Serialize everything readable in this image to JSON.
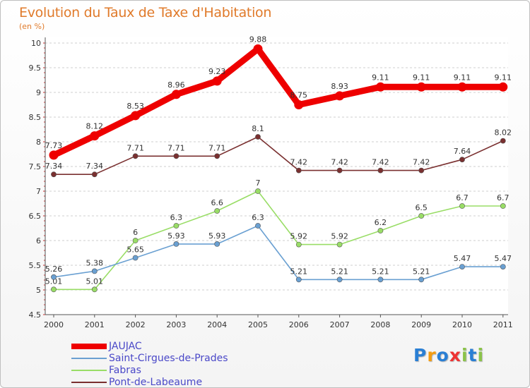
{
  "chart_data": {
    "type": "line",
    "title": "Evolution du Taux de Taxe d'Habitation",
    "subtitle": "(en %)",
    "xlabel": "",
    "ylabel": "",
    "categories": [
      "2000",
      "2001",
      "2002",
      "2003",
      "2004",
      "2005",
      "2006",
      "2007",
      "2008",
      "2009",
      "2010",
      "2011"
    ],
    "ylim": [
      4.5,
      10
    ],
    "yticks": [
      4.5,
      5,
      5.5,
      6,
      6.5,
      7,
      7.5,
      8,
      8.5,
      9,
      9.5,
      10
    ],
    "ytick_labels": [
      "4.5",
      "5",
      "5.5",
      "6",
      "6.5",
      "7",
      "7.5",
      "8",
      "8.5",
      "9",
      "9.5",
      "10"
    ],
    "grid": "horizontal dashed",
    "legend_position": "bottom-left",
    "series": [
      {
        "name": "JAUJAC",
        "color": "#ee0000",
        "values": [
          7.73,
          8.12,
          8.53,
          8.96,
          9.23,
          9.88,
          8.75,
          8.93,
          9.11,
          9.11,
          9.11,
          9.11
        ],
        "labels": [
          "7.73",
          "8.12",
          "8.53",
          "8.96",
          "9.23",
          "9.88",
          "8.75",
          "8.93",
          "9.11",
          "9.11",
          "9.11",
          "9.11"
        ]
      },
      {
        "name": "Saint-Cirgues-de-Prades",
        "color": "#6aa0d2",
        "values": [
          5.26,
          5.38,
          5.65,
          5.93,
          5.93,
          6.3,
          5.21,
          5.21,
          5.21,
          5.21,
          5.47,
          5.47
        ],
        "labels": [
          "5.26",
          "5.38",
          "5.65",
          "5.93",
          "5.93",
          "6.3",
          "5.21",
          "5.21",
          "5.21",
          "5.21",
          "5.47",
          "5.47"
        ]
      },
      {
        "name": "Fabras",
        "color": "#99dd66",
        "values": [
          5.01,
          5.01,
          6.0,
          6.3,
          6.6,
          7.0,
          5.92,
          5.92,
          6.2,
          6.5,
          6.7,
          6.7
        ],
        "labels": [
          "5.01",
          "5.01",
          "6",
          "6.3",
          "6.6",
          "7",
          "5.92",
          "5.92",
          "6.2",
          "6.5",
          "6.7",
          "6.7"
        ]
      },
      {
        "name": "Pont-de-Labeaume",
        "color": "#7a3030",
        "values": [
          7.34,
          7.34,
          7.71,
          7.71,
          7.71,
          8.1,
          7.42,
          7.42,
          7.42,
          7.42,
          7.64,
          8.02
        ],
        "labels": [
          "7.34",
          "7.34",
          "7.71",
          "7.71",
          "7.71",
          "8.1",
          "7.42",
          "7.42",
          "7.42",
          "7.42",
          "7.64",
          "8.02"
        ]
      }
    ]
  },
  "logo": {
    "text": "Proxiti",
    "letter_colors": [
      "#2a7fd4",
      "#f39c12",
      "#2a7fd4",
      "#ee3333",
      "#8bc34a",
      "#2a7fd4",
      "#8bc34a"
    ]
  }
}
